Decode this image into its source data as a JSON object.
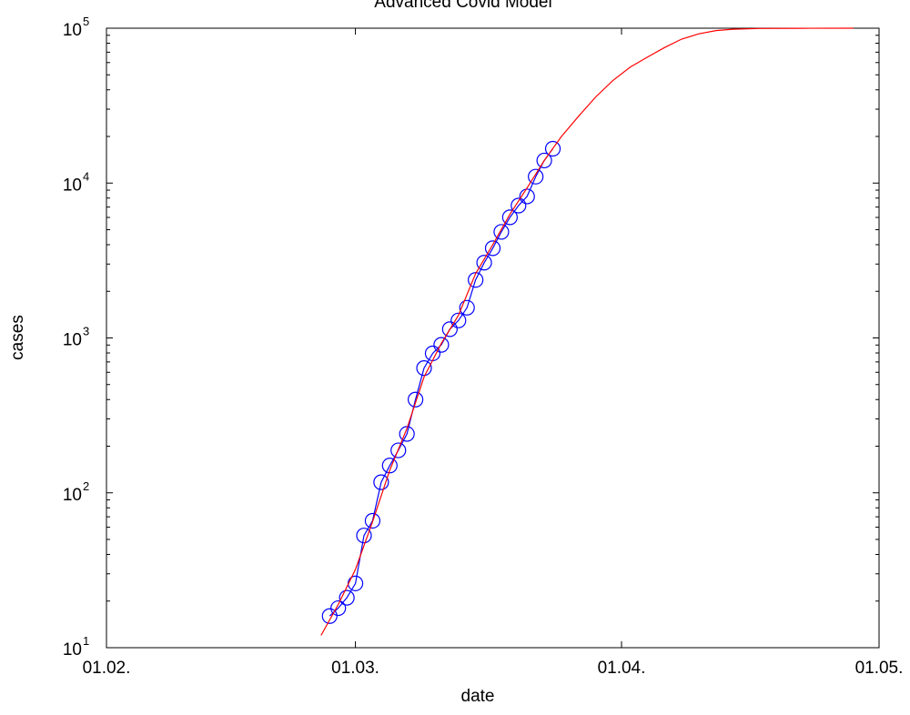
{
  "chart_data": {
    "type": "line",
    "title": "Advanced Covid Model",
    "xlabel": "date",
    "ylabel": "cases",
    "yscale": "log",
    "xlim": [
      "2020-02-01",
      "2020-05-01"
    ],
    "ylim": [
      10,
      100000
    ],
    "x_ticks": [
      {
        "date": "2020-02-01",
        "label": "01.02."
      },
      {
        "date": "2020-03-01",
        "label": "01.03."
      },
      {
        "date": "2020-04-01",
        "label": "01.04."
      },
      {
        "date": "2020-05-01",
        "label": "01.05."
      }
    ],
    "y_ticks": [
      {
        "value": 10,
        "base": "10",
        "exp": "1"
      },
      {
        "value": 100,
        "base": "10",
        "exp": "2"
      },
      {
        "value": 1000,
        "base": "10",
        "exp": "3"
      },
      {
        "value": 10000,
        "base": "10",
        "exp": "4"
      },
      {
        "value": 100000,
        "base": "10",
        "exp": "5"
      }
    ],
    "grid": false,
    "series": [
      {
        "style": "line-with-circle-markers",
        "color": "#0000ff",
        "points": [
          {
            "x": "2020-02-27",
            "y": 16
          },
          {
            "x": "2020-02-28",
            "y": 18
          },
          {
            "x": "2020-02-29",
            "y": 21
          },
          {
            "x": "2020-03-01",
            "y": 26
          },
          {
            "x": "2020-03-02",
            "y": 53
          },
          {
            "x": "2020-03-03",
            "y": 66
          },
          {
            "x": "2020-03-04",
            "y": 117
          },
          {
            "x": "2020-03-05",
            "y": 150
          },
          {
            "x": "2020-03-06",
            "y": 188
          },
          {
            "x": "2020-03-07",
            "y": 240
          },
          {
            "x": "2020-03-08",
            "y": 400
          },
          {
            "x": "2020-03-09",
            "y": 639
          },
          {
            "x": "2020-03-10",
            "y": 795
          },
          {
            "x": "2020-03-11",
            "y": 902
          },
          {
            "x": "2020-03-12",
            "y": 1139
          },
          {
            "x": "2020-03-13",
            "y": 1296
          },
          {
            "x": "2020-03-14",
            "y": 1567
          },
          {
            "x": "2020-03-15",
            "y": 2369
          },
          {
            "x": "2020-03-16",
            "y": 3062
          },
          {
            "x": "2020-03-17",
            "y": 3795
          },
          {
            "x": "2020-03-18",
            "y": 4838
          },
          {
            "x": "2020-03-19",
            "y": 6012
          },
          {
            "x": "2020-03-20",
            "y": 7156
          },
          {
            "x": "2020-03-21",
            "y": 8198
          },
          {
            "x": "2020-03-22",
            "y": 10999
          },
          {
            "x": "2020-03-23",
            "y": 13989
          },
          {
            "x": "2020-03-24",
            "y": 16662
          }
        ]
      },
      {
        "style": "line",
        "color": "#ff0000",
        "points": [
          {
            "x": "2020-02-26",
            "y": 12
          },
          {
            "x": "2020-02-28",
            "y": 19
          },
          {
            "x": "2020-03-01",
            "y": 32
          },
          {
            "x": "2020-03-03",
            "y": 65
          },
          {
            "x": "2020-03-05",
            "y": 140
          },
          {
            "x": "2020-03-07",
            "y": 260
          },
          {
            "x": "2020-03-09",
            "y": 560
          },
          {
            "x": "2020-03-11",
            "y": 920
          },
          {
            "x": "2020-03-13",
            "y": 1400
          },
          {
            "x": "2020-03-15",
            "y": 2600
          },
          {
            "x": "2020-03-17",
            "y": 4000
          },
          {
            "x": "2020-03-19",
            "y": 6300
          },
          {
            "x": "2020-03-21",
            "y": 9300
          },
          {
            "x": "2020-03-23",
            "y": 14000
          },
          {
            "x": "2020-03-25",
            "y": 20000
          },
          {
            "x": "2020-03-27",
            "y": 27000
          },
          {
            "x": "2020-03-29",
            "y": 36000
          },
          {
            "x": "2020-03-31",
            "y": 46000
          },
          {
            "x": "2020-04-02",
            "y": 56000
          },
          {
            "x": "2020-04-04",
            "y": 65000
          },
          {
            "x": "2020-04-06",
            "y": 75000
          },
          {
            "x": "2020-04-08",
            "y": 85000
          },
          {
            "x": "2020-04-10",
            "y": 92000
          },
          {
            "x": "2020-04-12",
            "y": 96500
          },
          {
            "x": "2020-04-14",
            "y": 98500
          },
          {
            "x": "2020-04-17",
            "y": 99600
          },
          {
            "x": "2020-04-22",
            "y": 99900
          },
          {
            "x": "2020-04-28",
            "y": 100000
          }
        ]
      }
    ]
  }
}
